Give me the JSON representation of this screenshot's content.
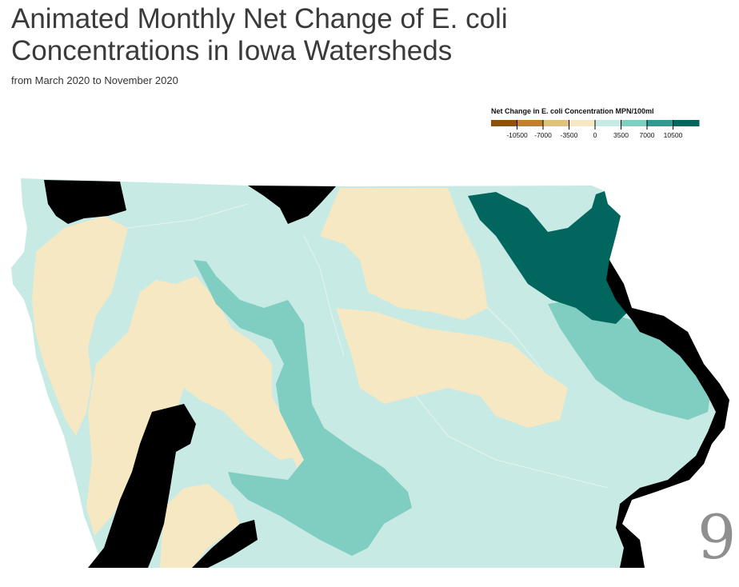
{
  "header": {
    "title": "Animated Monthly Net Change of E. coli Concentrations in Iowa Watersheds",
    "subtitle": "from March 2020 to November 2020"
  },
  "legend": {
    "title": "Net Change in E. coli Concentration MPN/100ml",
    "ticks": [
      "-10500",
      "-7000",
      "-3500",
      "0",
      "3500",
      "7000",
      "10500"
    ],
    "colors": [
      "#8c510a",
      "#bf812d",
      "#dfc27d",
      "#f6e8c3",
      "#c7eae5",
      "#80cdc1",
      "#35978f",
      "#01665e"
    ]
  },
  "map": {
    "region": "Iowa",
    "no_data_color": "#000000",
    "class_colors": {
      "slight_decrease": "#f6e8c3",
      "slight_increase": "#c7eae5",
      "moderate_increase": "#80cdc1",
      "large_increase": "#01665e"
    }
  },
  "animation": {
    "frame_label": "9"
  }
}
